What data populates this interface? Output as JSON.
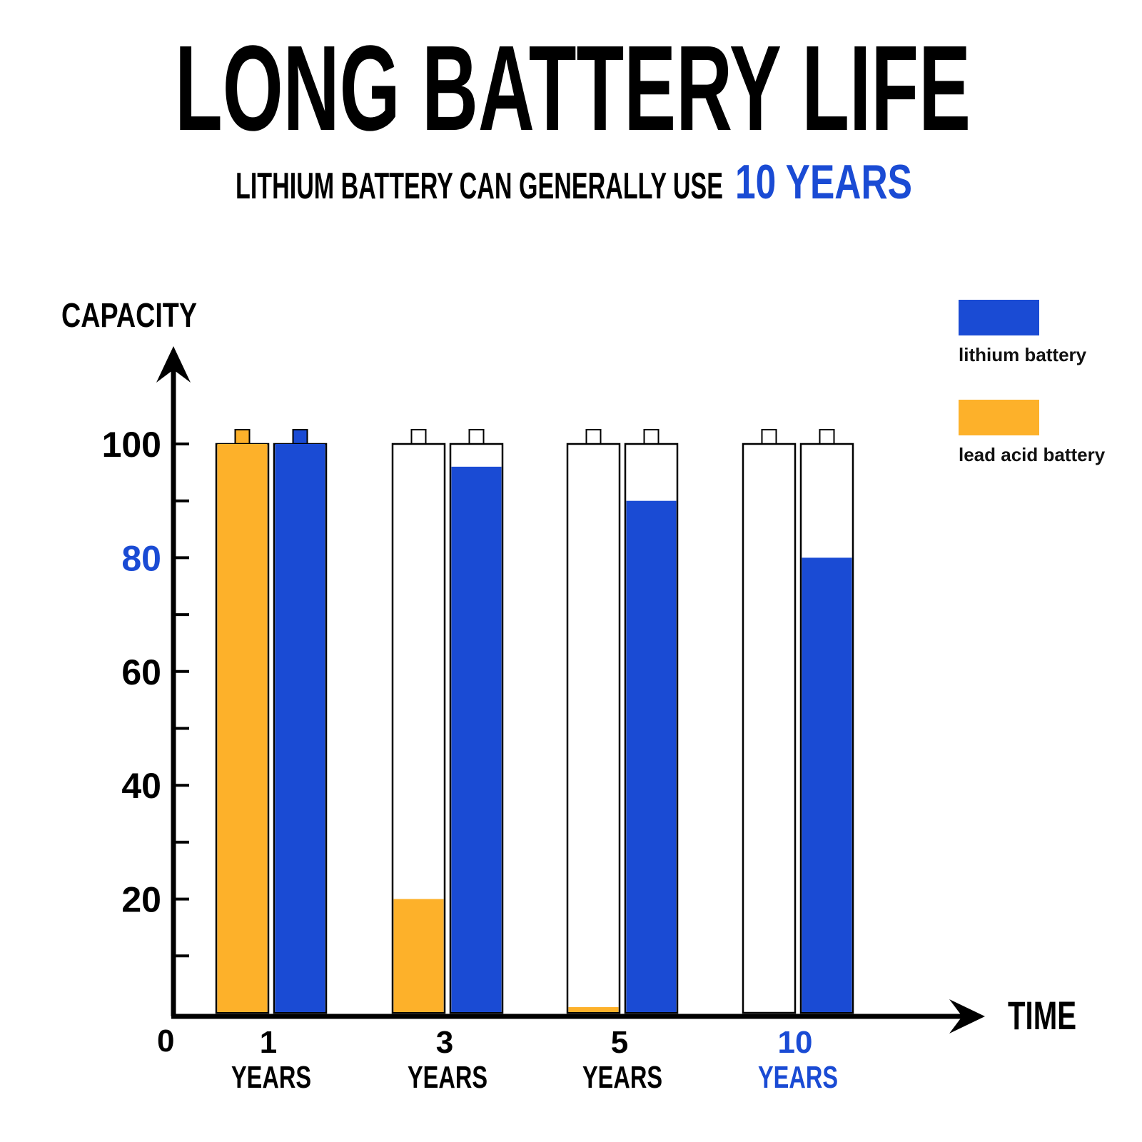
{
  "chart_data": {
    "type": "bar",
    "title": "LONG BATTERY LIFE",
    "subtitle": "LITHIUM BATTERY CAN GENERALLY USE",
    "subtitle_highlight": "10 YEARS",
    "ylabel": "CAPACITY",
    "xlabel": "TIME",
    "origin_label": "0",
    "ylim": [
      0,
      100
    ],
    "y_ticks": [
      20,
      40,
      60,
      80,
      100
    ],
    "y_minor_step": 10,
    "highlight_tick": 80,
    "categories": [
      {
        "number": "1",
        "unit": "YEARS",
        "highlight": false
      },
      {
        "number": "3",
        "unit": "YEARS",
        "highlight": false
      },
      {
        "number": "5",
        "unit": "YEARS",
        "highlight": false
      },
      {
        "number": "10",
        "unit": "YEARS",
        "highlight": true
      }
    ],
    "series": [
      {
        "name": "lead acid battery",
        "color": "#fdb12a",
        "values": [
          100,
          20,
          1,
          0
        ]
      },
      {
        "name": "lithium battery",
        "color": "#1a4bd4",
        "values": [
          100,
          96,
          90,
          80
        ]
      }
    ],
    "legend": {
      "placement": "top-right",
      "order": [
        "lithium battery",
        "lead acid battery"
      ]
    },
    "grid": false,
    "colors": {
      "accent": "#1a4bd4",
      "text": "#000000"
    }
  }
}
